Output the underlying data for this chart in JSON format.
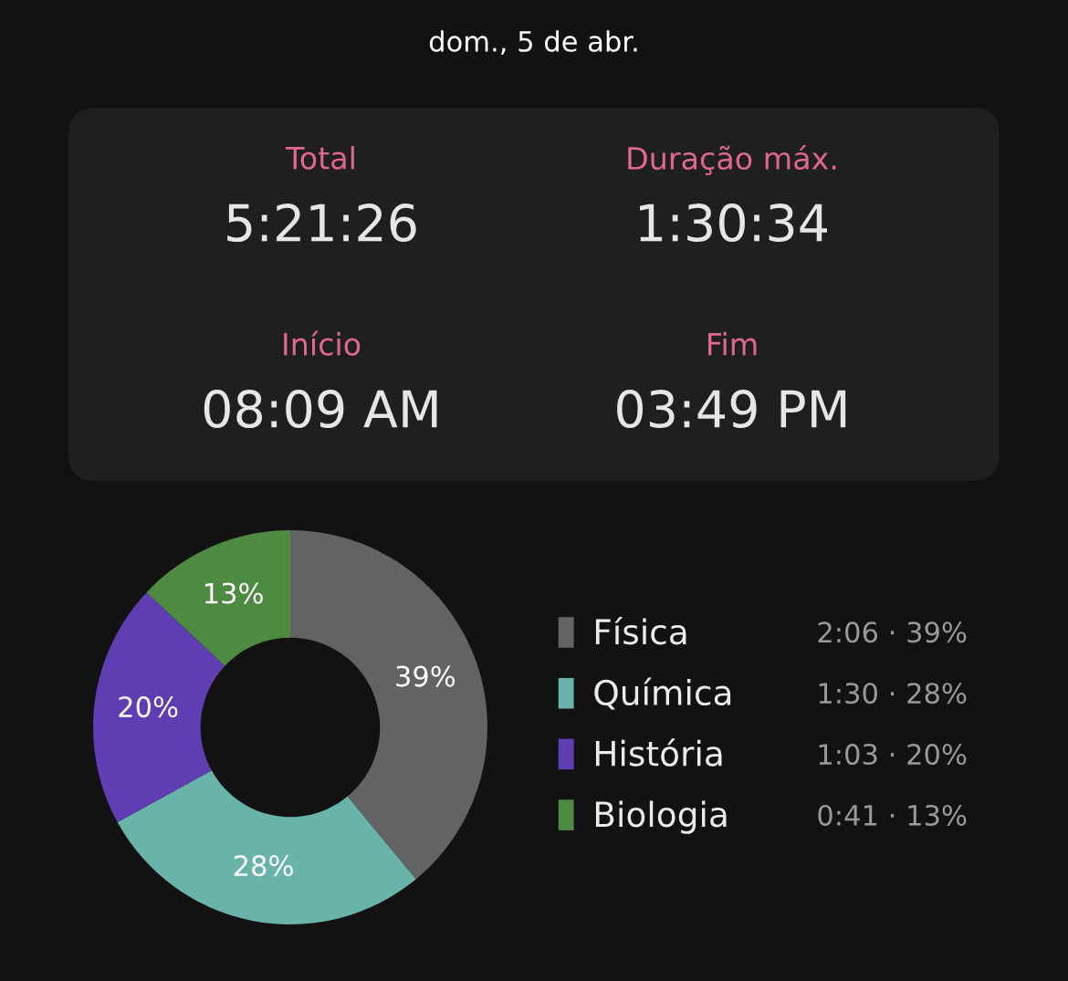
{
  "chart_data": [
    {
      "type": "other",
      "title": "dom., 5 de abr.",
      "annotations": [
        "Total",
        "5:21:26",
        "Duração máx.",
        "1:30:34",
        "Início",
        "08:09 AM",
        "Fim",
        "03:49 PM"
      ]
    },
    {
      "type": "donut",
      "categories": [
        "Física",
        "Química",
        "História",
        "Biologia"
      ],
      "values": [
        39,
        28,
        20,
        13
      ],
      "colors": [
        "#636363",
        "#6ab3aa",
        "#5f3db3",
        "#4e8a41"
      ],
      "value_labels": [
        "39%",
        "28%",
        "20%",
        "13%"
      ],
      "legend": "right",
      "annotations": [
        "2:06 · 39%",
        "1:30 · 28%",
        "1:03 · 20%",
        "0:41 · 13%"
      ]
    }
  ]
}
